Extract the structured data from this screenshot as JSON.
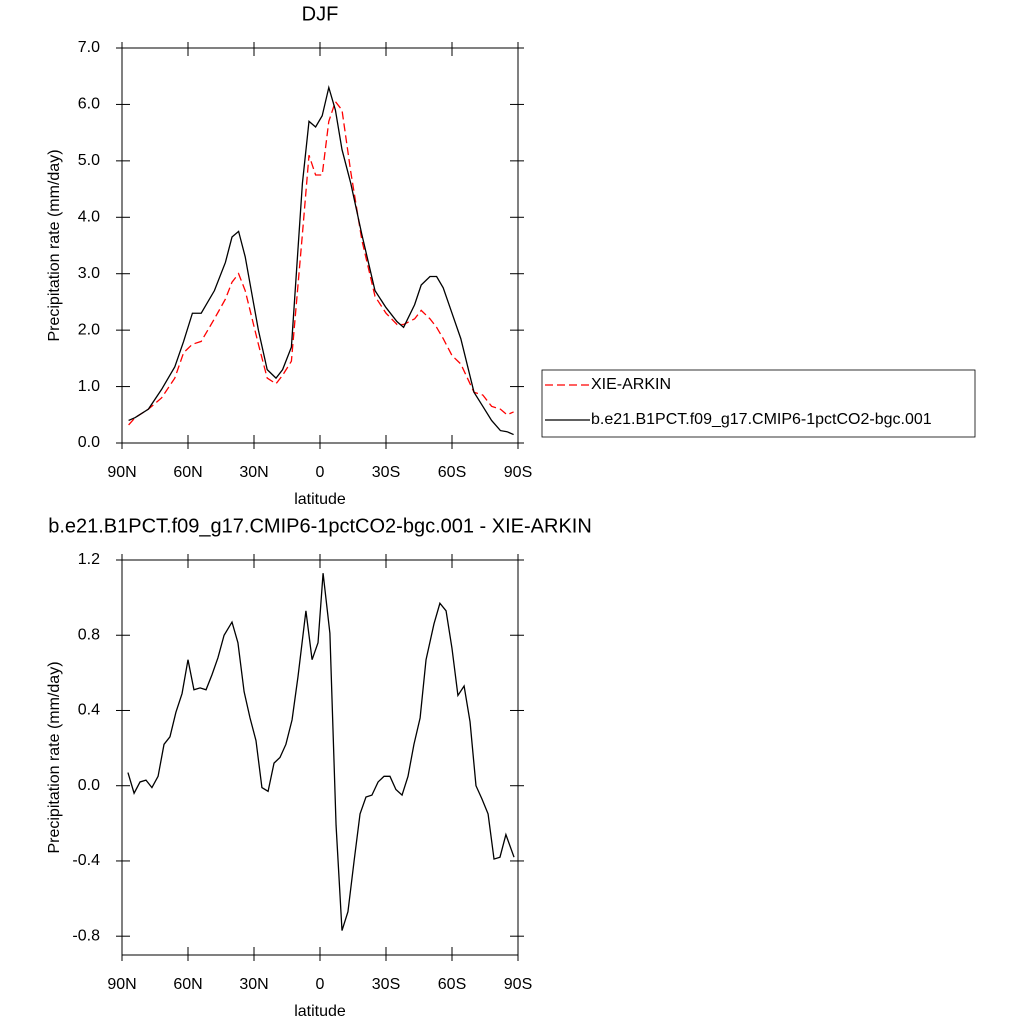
{
  "chart_data": [
    {
      "type": "line",
      "title": "DJF",
      "xlabel": "latitude",
      "ylabel": "Precipitation rate (mm/day)",
      "xlim": [
        90,
        -90
      ],
      "xticks": [
        {
          "value": 90,
          "label": "90N"
        },
        {
          "value": 60,
          "label": "60N"
        },
        {
          "value": 30,
          "label": "30N"
        },
        0,
        {
          "value": -30,
          "label": "30S"
        },
        {
          "value": -60,
          "label": "60S"
        },
        {
          "value": -90,
          "label": "90S"
        }
      ],
      "ylim": [
        0,
        7
      ],
      "yticks": [
        {
          "value": 0,
          "label": "0.0"
        },
        {
          "value": 1,
          "label": "1.0"
        },
        {
          "value": 2,
          "label": "2.0"
        },
        {
          "value": 3,
          "label": "3.0"
        },
        {
          "value": 4,
          "label": "4.0"
        },
        {
          "value": 5,
          "label": "5.0"
        },
        {
          "value": 6,
          "label": "6.0"
        },
        {
          "value": 7,
          "label": "7.0"
        }
      ],
      "legend": "outside right",
      "x": [
        87,
        84,
        78,
        72,
        66,
        62,
        58,
        54,
        48,
        43,
        40,
        37,
        34,
        28,
        24,
        20,
        17,
        13,
        8,
        5,
        2,
        -1,
        -4,
        -7,
        -10,
        -14,
        -19,
        -25,
        -30,
        -35,
        -38,
        -43,
        -46,
        -50,
        -53,
        -56,
        -60,
        -64,
        -70,
        -74,
        -78,
        -82,
        -85,
        -88
      ],
      "series": [
        {
          "name": "XIE-ARKIN",
          "color": "#ff0000",
          "dash": true,
          "values": [
            0.32,
            0.45,
            0.6,
            0.8,
            1.15,
            1.6,
            1.75,
            1.8,
            2.2,
            2.55,
            2.85,
            3.0,
            2.7,
            1.75,
            1.15,
            1.05,
            1.2,
            1.45,
            3.7,
            5.1,
            4.75,
            4.75,
            5.7,
            6.05,
            5.9,
            4.8,
            3.6,
            2.6,
            2.3,
            2.1,
            2.1,
            2.2,
            2.35,
            2.2,
            2.05,
            1.85,
            1.55,
            1.4,
            0.9,
            0.85,
            0.65,
            0.6,
            0.5,
            0.55
          ]
        },
        {
          "name": "b.e21.B1PCT.f09_g17.CMIP6-1pctCO2-bgc.001",
          "color": "#000000",
          "dash": false,
          "values": [
            0.4,
            0.45,
            0.6,
            0.95,
            1.35,
            1.8,
            2.3,
            2.3,
            2.7,
            3.2,
            3.65,
            3.75,
            3.3,
            2.0,
            1.3,
            1.15,
            1.3,
            1.7,
            4.6,
            5.7,
            5.6,
            5.8,
            6.3,
            5.9,
            5.2,
            4.6,
            3.7,
            2.7,
            2.4,
            2.15,
            2.05,
            2.45,
            2.8,
            2.95,
            2.95,
            2.75,
            2.3,
            1.85,
            0.9,
            0.65,
            0.4,
            0.22,
            0.2,
            0.15
          ]
        }
      ]
    },
    {
      "type": "line",
      "title": "b.e21.B1PCT.f09_g17.CMIP6-1pctCO2-bgc.001 - XIE-ARKIN",
      "xlabel": "latitude",
      "ylabel": "Precipitation rate (mm/day)",
      "xlim": [
        90,
        -90
      ],
      "xticks": [
        {
          "value": 90,
          "label": "90N"
        },
        {
          "value": 60,
          "label": "60N"
        },
        {
          "value": 30,
          "label": "30N"
        },
        0,
        {
          "value": -30,
          "label": "30S"
        },
        {
          "value": -60,
          "label": "60S"
        },
        {
          "value": -90,
          "label": "90S"
        }
      ],
      "ylim": [
        -0.9,
        1.2
      ],
      "yticks": [
        {
          "value": -0.8,
          "label": "-0.8"
        },
        {
          "value": -0.4,
          "label": "-0.4"
        },
        {
          "value": 0,
          "label": "0.0"
        },
        {
          "value": 0.4,
          "label": "0.4"
        },
        {
          "value": 0.8,
          "label": "0.8"
        },
        {
          "value": 1.2,
          "label": "1.2"
        }
      ],
      "x": [
        87.3,
        84.5,
        81.8,
        79.1,
        76.4,
        73.6,
        70.9,
        68.2,
        65.5,
        62.7,
        60.0,
        57.3,
        54.5,
        51.8,
        49.1,
        46.4,
        43.6,
        40.0,
        37.3,
        34.5,
        31.8,
        29.1,
        26.4,
        23.6,
        20.9,
        18.2,
        15.5,
        12.7,
        10.0,
        6.4,
        3.6,
        0.9,
        -1.4,
        -4.5,
        -7.3,
        -10.0,
        -12.7,
        -15.5,
        -18.2,
        -20.9,
        -23.6,
        -26.4,
        -29.1,
        -31.8,
        -34.5,
        -37.3,
        -40.0,
        -42.7,
        -45.5,
        -48.2,
        -51.8,
        -54.5,
        -57.3,
        -60.0,
        -62.7,
        -65.5,
        -68.2,
        -70.9,
        -73.6,
        -76.4,
        -79.1,
        -81.8,
        -84.5,
        -88.2
      ],
      "series": [
        {
          "color": "#000000",
          "dash": false,
          "values": [
            0.07,
            -0.04,
            0.02,
            0.03,
            -0.01,
            0.05,
            0.22,
            0.26,
            0.39,
            0.49,
            0.67,
            0.51,
            0.52,
            0.51,
            0.59,
            0.68,
            0.8,
            0.87,
            0.76,
            0.5,
            0.36,
            0.24,
            -0.01,
            -0.03,
            0.12,
            0.15,
            0.22,
            0.35,
            0.58,
            0.93,
            0.67,
            0.76,
            1.13,
            0.81,
            -0.21,
            -0.77,
            -0.67,
            -0.4,
            -0.15,
            -0.06,
            -0.05,
            0.02,
            0.05,
            0.05,
            -0.02,
            -0.05,
            0.05,
            0.22,
            0.36,
            0.67,
            0.86,
            0.97,
            0.93,
            0.73,
            0.48,
            0.53,
            0.34,
            0.0,
            -0.07,
            -0.15,
            -0.39,
            -0.38,
            -0.26,
            -0.38
          ]
        }
      ]
    }
  ]
}
